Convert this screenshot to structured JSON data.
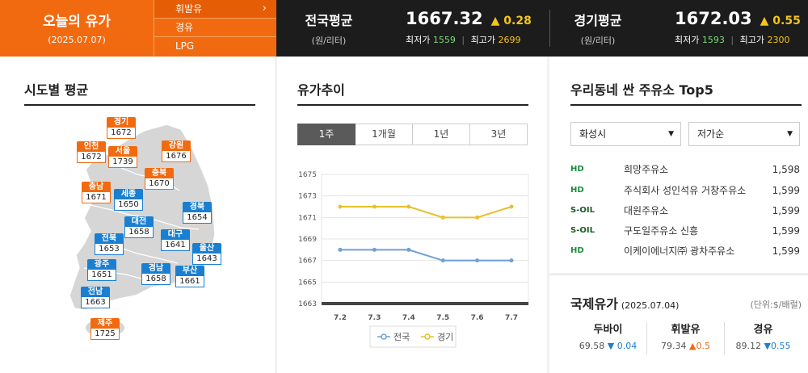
{
  "header": {
    "title": "오늘의 유가",
    "date": "(2025.07.07)",
    "fuel_types": [
      "휘발유",
      "경유",
      "LPG"
    ],
    "national": {
      "label": "전국평균",
      "unit": "(원/리터)",
      "value": "1667.32",
      "change": "▲ 0.28",
      "min_label": "최저가",
      "min": "1559",
      "max_label": "최고가",
      "max": "2699"
    },
    "gyeonggi": {
      "label": "경기평균",
      "unit": "(원/리터)",
      "value": "1672.03",
      "change": "▲ 0.55",
      "min_label": "최저가",
      "min": "1593",
      "max_label": "최고가",
      "max": "2300"
    }
  },
  "regional": {
    "title": "시도별 평균",
    "pins": [
      {
        "name": "경기",
        "value": "1672",
        "color": "orange"
      },
      {
        "name": "인천",
        "value": "1672",
        "color": "orange"
      },
      {
        "name": "서울",
        "value": "1739",
        "color": "orange"
      },
      {
        "name": "강원",
        "value": "1676",
        "color": "orange"
      },
      {
        "name": "충북",
        "value": "1670",
        "color": "orange"
      },
      {
        "name": "충남",
        "value": "1671",
        "color": "orange"
      },
      {
        "name": "세종",
        "value": "1650",
        "color": "blue"
      },
      {
        "name": "경북",
        "value": "1654",
        "color": "blue"
      },
      {
        "name": "대전",
        "value": "1658",
        "color": "blue"
      },
      {
        "name": "전북",
        "value": "1653",
        "color": "blue"
      },
      {
        "name": "대구",
        "value": "1641",
        "color": "blue"
      },
      {
        "name": "울산",
        "value": "1643",
        "color": "blue"
      },
      {
        "name": "광주",
        "value": "1651",
        "color": "blue"
      },
      {
        "name": "경남",
        "value": "1658",
        "color": "blue"
      },
      {
        "name": "부산",
        "value": "1661",
        "color": "blue"
      },
      {
        "name": "전남",
        "value": "1663",
        "color": "blue"
      },
      {
        "name": "제주",
        "value": "1725",
        "color": "orange"
      }
    ]
  },
  "trend": {
    "title": "유가추이",
    "tabs": [
      "1주",
      "1개월",
      "1년",
      "3년"
    ],
    "active_tab": "1주"
  },
  "chart_data": {
    "type": "line",
    "x": [
      "7.2",
      "7.3",
      "7.4",
      "7.5",
      "7.6",
      "7.7"
    ],
    "series": [
      {
        "name": "전국",
        "values": [
          1668,
          1668,
          1668,
          1667,
          1667,
          1667
        ],
        "color": "#6f9fd6"
      },
      {
        "name": "경기",
        "values": [
          1672,
          1672,
          1672,
          1671,
          1671,
          1672
        ],
        "color": "#e7c02e"
      }
    ],
    "yticks": [
      1663,
      1665,
      1667,
      1669,
      1671,
      1673,
      1675
    ],
    "ylim": [
      1663,
      1675
    ],
    "grid": true,
    "legend": "bottom"
  },
  "cheap": {
    "title": "우리동네 싼 주유소 Top5",
    "region_select": "화성시",
    "sort_select": "저가순",
    "stations": [
      {
        "brand": "HD",
        "name": "희망주유소",
        "price": "1,598"
      },
      {
        "brand": "HD",
        "name": "주식회사 성인석유 거창주유소",
        "price": "1,599"
      },
      {
        "brand": "S-OIL",
        "name": "대원주유소",
        "price": "1,599"
      },
      {
        "brand": "S-OIL",
        "name": "구도일주유소 신흥",
        "price": "1,599"
      },
      {
        "brand": "HD",
        "name": "이케이에너지㈜ 광차주유소",
        "price": "1,599"
      }
    ]
  },
  "international": {
    "title": "국제유가",
    "date": "(2025.07.04)",
    "unit": "(단위:$/배럴)",
    "items": [
      {
        "name": "두바이",
        "value": "69.58",
        "change": "▼ 0.04",
        "dir": "down"
      },
      {
        "name": "휘발유",
        "value": "79.34",
        "change": "▲0.5",
        "dir": "up"
      },
      {
        "name": "경유",
        "value": "89.12",
        "change": "▼0.55",
        "dir": "down"
      }
    ]
  }
}
